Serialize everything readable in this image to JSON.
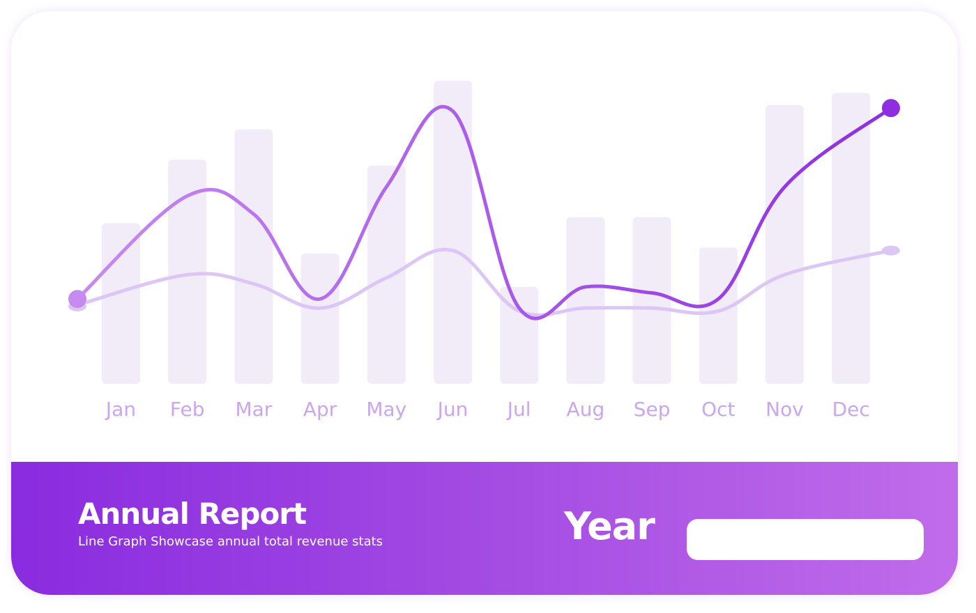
{
  "chart_data": {
    "type": "line",
    "categories": [
      "Jan",
      "Feb",
      "Mar",
      "Apr",
      "May",
      "Jun",
      "Jul",
      "Aug",
      "Sep",
      "Oct",
      "Nov",
      "Dec"
    ],
    "bars": [
      53,
      74,
      84,
      43,
      72,
      100,
      32,
      55,
      55,
      45,
      92,
      96
    ],
    "series": [
      {
        "values": [
          28,
          62,
          56,
          28,
          65,
          90,
          25,
          32,
          30,
          28,
          65,
          91
        ]
      },
      {
        "values": [
          26,
          36,
          33,
          25,
          35,
          44,
          24,
          25,
          25,
          24,
          36,
          44
        ]
      }
    ],
    "ylim": [
      0,
      100
    ],
    "grid": false,
    "colors": {
      "bar": "#f2ecf8",
      "series_primary": "#8e2ee0",
      "series_primary_start": "#c78af0",
      "series_secondary": "#dcc6f5",
      "tick_label": "#c9a6ee"
    }
  },
  "footer": {
    "title": "Annual Report",
    "subtitle": "Line Graph Showcase annual total revenue stats",
    "year_label": "Year",
    "year_input_value": ""
  }
}
